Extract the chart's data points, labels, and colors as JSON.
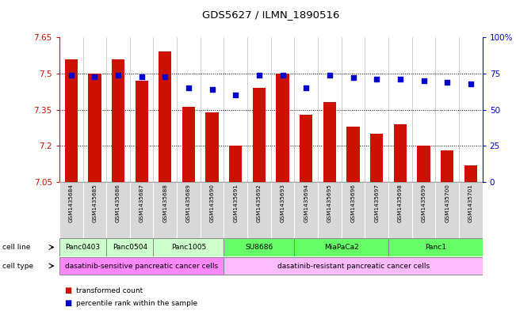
{
  "title": "GDS5627 / ILMN_1890516",
  "samples": [
    "GSM1435684",
    "GSM1435685",
    "GSM1435686",
    "GSM1435687",
    "GSM1435688",
    "GSM1435689",
    "GSM1435690",
    "GSM1435691",
    "GSM1435692",
    "GSM1435693",
    "GSM1435694",
    "GSM1435695",
    "GSM1435696",
    "GSM1435697",
    "GSM1435698",
    "GSM1435699",
    "GSM1435700",
    "GSM1435701"
  ],
  "bar_values": [
    7.56,
    7.5,
    7.56,
    7.47,
    7.59,
    7.36,
    7.34,
    7.2,
    7.44,
    7.5,
    7.33,
    7.38,
    7.28,
    7.25,
    7.29,
    7.2,
    7.18,
    7.12
  ],
  "percentile_values": [
    74,
    73,
    74,
    73,
    73,
    65,
    64,
    60,
    74,
    74,
    65,
    74,
    72,
    71,
    71,
    70,
    69,
    68
  ],
  "y_min": 7.05,
  "y_max": 7.65,
  "y_ticks": [
    7.05,
    7.2,
    7.35,
    7.5,
    7.65
  ],
  "right_y_ticks": [
    0,
    25,
    50,
    75,
    100
  ],
  "bar_color": "#CC1100",
  "dot_color": "#0000CC",
  "cell_lines": [
    {
      "label": "Panc0403",
      "start": 0,
      "end": 1,
      "color": "#ccffcc"
    },
    {
      "label": "Panc0504",
      "start": 2,
      "end": 3,
      "color": "#ccffcc"
    },
    {
      "label": "Panc1005",
      "start": 4,
      "end": 6,
      "color": "#ccffcc"
    },
    {
      "label": "SU8686",
      "start": 7,
      "end": 9,
      "color": "#66ff66"
    },
    {
      "label": "MiaPaCa2",
      "start": 10,
      "end": 13,
      "color": "#66ff66"
    },
    {
      "label": "Panc1",
      "start": 14,
      "end": 17,
      "color": "#66ff66"
    }
  ],
  "cell_types": [
    {
      "label": "dasatinib-sensitive pancreatic cancer cells",
      "start": 0,
      "end": 6,
      "color": "#ff88ff"
    },
    {
      "label": "dasatinib-resistant pancreatic cancer cells",
      "start": 7,
      "end": 17,
      "color": "#ffbbff"
    }
  ],
  "legend_items": [
    {
      "label": "transformed count",
      "color": "#CC1100"
    },
    {
      "label": "percentile rank within the sample",
      "color": "#0000CC"
    }
  ],
  "fig_width": 6.51,
  "fig_height": 3.93,
  "dpi": 100
}
